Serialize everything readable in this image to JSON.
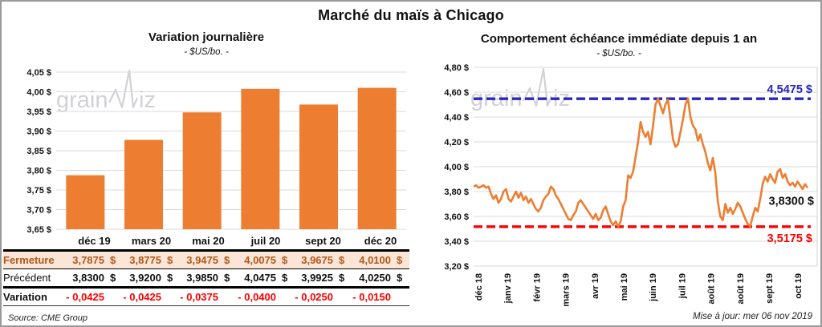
{
  "title": "Marché du maïs à Chicago",
  "watermark": "grainwiz",
  "colors": {
    "orange": "#ED7D31",
    "blue": "#2626C4",
    "red": "#FF0000",
    "peach_bg": "#FBE5D6",
    "brown_text": "#B1581B",
    "grid": "#D9D9D9",
    "watermark": "#C9C9CF",
    "frame_border": "#9A9A9A"
  },
  "left_panel": {
    "title": "Variation journalière",
    "subtitle": "- $US/bo. -"
  },
  "right_panel": {
    "title": "Comportement échéance immédiate depuis 1 an",
    "subtitle": "- $US/bo. -",
    "max_label": "4,5475 $",
    "last_label": "3,8300 $",
    "min_label": "3,5175 $",
    "updated": "Mise à jour: mer 06 nov 2019"
  },
  "table": {
    "columns": [
      "déc 19",
      "mars 20",
      "mai 20",
      "juil 20",
      "sept 20",
      "déc 20"
    ],
    "rows": [
      {
        "label": "Fermeture",
        "unit": "$",
        "values": [
          "3,7875",
          "3,8775",
          "3,9475",
          "4,0075",
          "3,9675",
          "4,0100"
        ]
      },
      {
        "label": "Précédent",
        "unit": "$",
        "values": [
          "3,8300",
          "3,9200",
          "3,9850",
          "4,0475",
          "3,9925",
          "4,0250"
        ]
      },
      {
        "label": "Variation",
        "unit": "",
        "values": [
          "- 0,0425",
          "- 0,0425",
          "- 0,0375",
          "- 0,0400",
          "- 0,0250",
          "- 0,0150"
        ]
      }
    ],
    "source": "Source: CME Group"
  },
  "chart_data": [
    {
      "type": "bar",
      "title": "Variation journalière",
      "ylabel": "$US/bo.",
      "categories": [
        "déc 19",
        "mars 20",
        "mai 20",
        "juil 20",
        "sept 20",
        "déc 20"
      ],
      "values": [
        3.7875,
        3.8775,
        3.9475,
        4.0075,
        3.9675,
        4.01
      ],
      "ylim": [
        3.65,
        4.05
      ],
      "ytick_step": 0.05,
      "grid": true,
      "bar_color": "#ED7D31"
    },
    {
      "type": "line",
      "title": "Comportement échéance immédiate depuis 1 an",
      "ylabel": "$US/bo.",
      "x_labels": [
        "déc 18",
        "janv 19",
        "févr 19",
        "mars 19",
        "avr 19",
        "mai 19",
        "juin 19",
        "juil 19",
        "août 19",
        "août 19",
        "sept 19",
        "oct 19"
      ],
      "ylim": [
        3.2,
        4.8
      ],
      "ytick_step": 0.2,
      "grid": true,
      "line_color": "#ED7D31",
      "reference_lines": [
        {
          "value": 4.5475,
          "color": "#2626C4",
          "label": "4,5475 $",
          "style": "dashed"
        },
        {
          "value": 3.5175,
          "color": "#FF0000",
          "label": "3,5175 $",
          "style": "dashed"
        }
      ],
      "last_value": 3.83,
      "last_label": "3,8300 $",
      "values": [
        3.84,
        3.85,
        3.83,
        3.84,
        3.85,
        3.83,
        3.84,
        3.78,
        3.74,
        3.77,
        3.71,
        3.74,
        3.8,
        3.82,
        3.74,
        3.72,
        3.76,
        3.8,
        3.75,
        3.79,
        3.73,
        3.76,
        3.71,
        3.74,
        3.7,
        3.66,
        3.64,
        3.67,
        3.73,
        3.76,
        3.78,
        3.84,
        3.82,
        3.77,
        3.74,
        3.7,
        3.66,
        3.62,
        3.58,
        3.57,
        3.61,
        3.64,
        3.71,
        3.73,
        3.7,
        3.67,
        3.64,
        3.61,
        3.58,
        3.62,
        3.57,
        3.59,
        3.65,
        3.68,
        3.62,
        3.56,
        3.53,
        3.56,
        3.52,
        3.56,
        3.68,
        3.73,
        3.93,
        3.91,
        3.96,
        4.08,
        4.2,
        4.36,
        4.28,
        4.24,
        4.28,
        4.18,
        4.33,
        4.5,
        4.55,
        4.49,
        4.43,
        4.5,
        4.54,
        4.38,
        4.22,
        4.16,
        4.18,
        4.28,
        4.38,
        4.5,
        4.55,
        4.4,
        4.33,
        4.3,
        4.21,
        4.26,
        4.18,
        4.12,
        4.03,
        3.97,
        4.07,
        3.95,
        3.72,
        3.6,
        3.57,
        3.7,
        3.63,
        3.67,
        3.62,
        3.66,
        3.71,
        3.68,
        3.63,
        3.58,
        3.54,
        3.52,
        3.6,
        3.67,
        3.64,
        3.74,
        3.86,
        3.92,
        3.88,
        3.94,
        3.9,
        3.87,
        3.96,
        3.98,
        3.91,
        3.94,
        3.88,
        3.85,
        3.87,
        3.84,
        3.88,
        3.85,
        3.82,
        3.86,
        3.83
      ]
    }
  ]
}
